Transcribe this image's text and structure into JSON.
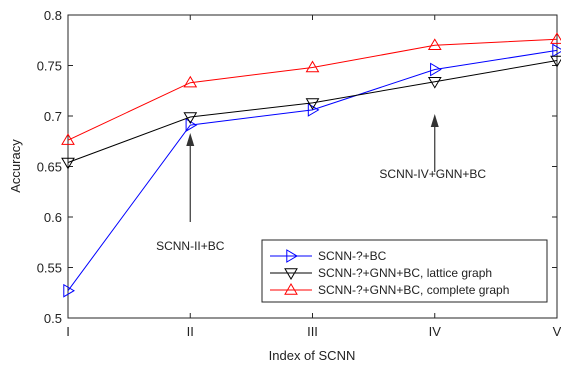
{
  "chart_data": {
    "type": "line",
    "categories": [
      "I",
      "II",
      "III",
      "IV",
      "V"
    ],
    "xlabel": "Index of SCNN",
    "ylabel": "Accuracy",
    "ylim": [
      0.5,
      0.8
    ],
    "yticks": [
      "0.5",
      "0.55",
      "0.6",
      "0.65",
      "0.7",
      "0.75",
      "0.8"
    ],
    "grid": false,
    "legend_position": "bottom-right",
    "series": [
      {
        "name": "SCNN-?+BC",
        "values": [
          0.527,
          0.691,
          0.706,
          0.746,
          0.765
        ],
        "color": "#0000ff",
        "marker": "triangle-right"
      },
      {
        "name": "SCNN-?+GNN+BC, lattice graph",
        "values": [
          0.654,
          0.699,
          0.713,
          0.734,
          0.755
        ],
        "color": "#000000",
        "marker": "triangle-down"
      },
      {
        "name": "SCNN-?+GNN+BC, complete graph",
        "values": [
          0.676,
          0.733,
          0.748,
          0.77,
          0.776
        ],
        "color": "#ff0000",
        "marker": "triangle-up"
      }
    ],
    "annotations": [
      {
        "text": "SCNN-II+BC",
        "category": "II"
      },
      {
        "text": "SCNN-IV+GNN+BC",
        "category": "IV"
      }
    ]
  }
}
